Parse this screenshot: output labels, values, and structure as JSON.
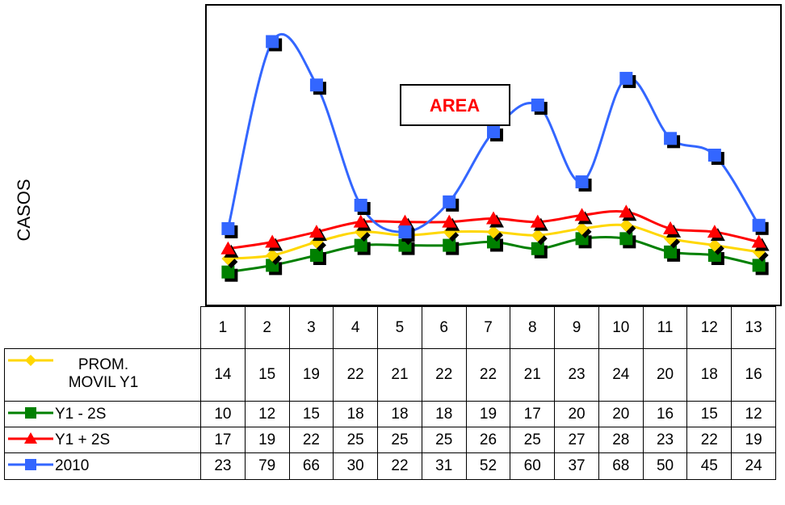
{
  "chart_data": {
    "type": "line",
    "ylabel": "CASOS",
    "annotation": "AREA",
    "categories": [
      "1",
      "2",
      "3",
      "4",
      "5",
      "6",
      "7",
      "8",
      "9",
      "10",
      "11",
      "12",
      "13"
    ],
    "series": [
      {
        "name": "PROM. MOVIL Y1",
        "color": "#FFD700",
        "marker": "diamond",
        "values": [
          14,
          15,
          19,
          22,
          21,
          22,
          22,
          21,
          23,
          24,
          20,
          18,
          16
        ]
      },
      {
        "name": "Y1 - 2S",
        "color": "#008000",
        "marker": "square",
        "values": [
          10,
          12,
          15,
          18,
          18,
          18,
          19,
          17,
          20,
          20,
          16,
          15,
          12
        ]
      },
      {
        "name": "Y1 + 2S",
        "color": "#FF0000",
        "marker": "triangle",
        "values": [
          17,
          19,
          22,
          25,
          25,
          25,
          26,
          25,
          27,
          28,
          23,
          22,
          19
        ]
      },
      {
        "name": "2010",
        "color": "#3366FF",
        "marker": "square",
        "values": [
          23,
          79,
          66,
          30,
          22,
          31,
          52,
          60,
          37,
          68,
          50,
          45,
          24
        ]
      }
    ],
    "ylim": [
      0,
      90
    ],
    "grid": false
  }
}
